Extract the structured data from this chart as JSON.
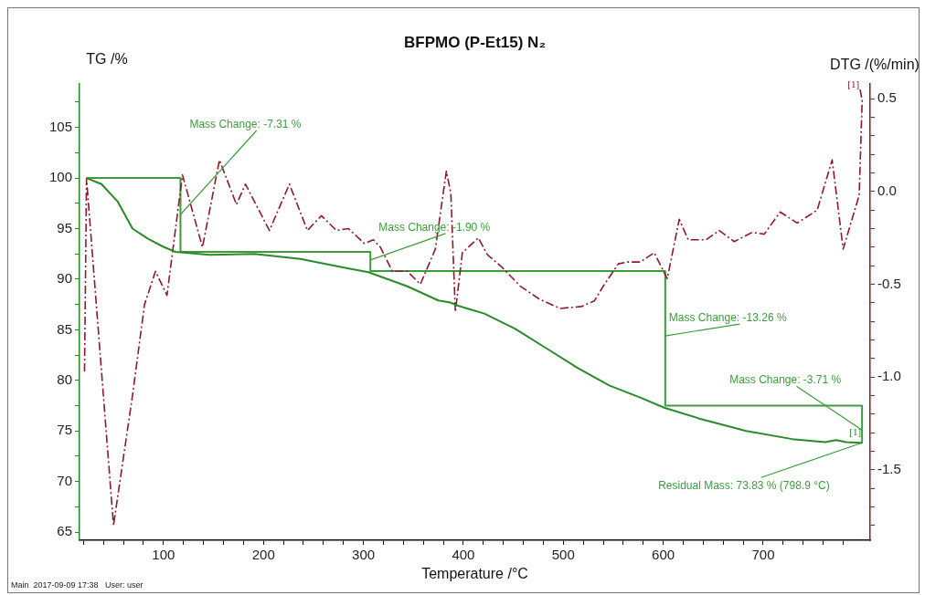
{
  "chart_data": {
    "type": "line",
    "title": "BFPMO (P-Et15) N₂",
    "xlabel": "Temperature /°C",
    "ylabel": "TG /%",
    "y2label": "DTG /(%/min)",
    "xlim": [
      16,
      807
    ],
    "xticks": [
      {
        "value": 20,
        "label": null
      },
      {
        "value": 40,
        "label": null
      },
      {
        "value": 60,
        "label": null
      },
      {
        "value": 80,
        "label": null
      },
      100,
      {
        "value": 120,
        "label": null
      },
      {
        "value": 140,
        "label": null
      },
      {
        "value": 160,
        "label": null
      },
      {
        "value": 180,
        "label": null
      },
      200,
      {
        "value": 220,
        "label": null
      },
      {
        "value": 240,
        "label": null
      },
      {
        "value": 260,
        "label": null
      },
      {
        "value": 280,
        "label": null
      },
      300,
      {
        "value": 320,
        "label": null
      },
      {
        "value": 340,
        "label": null
      },
      {
        "value": 360,
        "label": null
      },
      {
        "value": 380,
        "label": null
      },
      400,
      {
        "value": 420,
        "label": null
      },
      {
        "value": 440,
        "label": null
      },
      {
        "value": 460,
        "label": null
      },
      {
        "value": 480,
        "label": null
      },
      500,
      {
        "value": 520,
        "label": null
      },
      {
        "value": 540,
        "label": null
      },
      {
        "value": 560,
        "label": null
      },
      {
        "value": 580,
        "label": null
      },
      600,
      {
        "value": 620,
        "label": null
      },
      {
        "value": 640,
        "label": null
      },
      {
        "value": 660,
        "label": null
      },
      {
        "value": 680,
        "label": null
      },
      700,
      {
        "value": 720,
        "label": null
      },
      {
        "value": 740,
        "label": null
      },
      {
        "value": 760,
        "label": null
      },
      {
        "value": 780,
        "label": null
      }
    ],
    "ylim": [
      64.2,
      109.3
    ],
    "yticks": [
      65,
      {
        "value": 67.5,
        "label": null
      },
      70,
      {
        "value": 72.5,
        "label": null
      },
      75,
      {
        "value": 77.5,
        "label": null
      },
      80,
      {
        "value": 82.5,
        "label": null
      },
      85,
      {
        "value": 87.5,
        "label": null
      },
      90,
      {
        "value": 92.5,
        "label": null
      },
      95,
      {
        "value": 97.5,
        "label": null
      },
      100,
      {
        "value": 102.5,
        "label": null
      },
      105,
      {
        "value": 107.5,
        "label": null
      }
    ],
    "y2lim": [
      -1.88,
      0.58
    ],
    "y2ticks": [
      {
        "value": -1.8,
        "label": null
      },
      {
        "value": -1.7,
        "label": null
      },
      {
        "value": -1.6,
        "label": null
      },
      -1.5,
      {
        "value": -1.4,
        "label": null
      },
      {
        "value": -1.3,
        "label": null
      },
      {
        "value": -1.2,
        "label": null
      },
      {
        "value": -1.1,
        "label": null
      },
      {
        "value": -1,
        "label": "-1.0"
      },
      {
        "value": -0.9,
        "label": null
      },
      {
        "value": -0.8,
        "label": null
      },
      {
        "value": -0.7,
        "label": null
      },
      {
        "value": -0.6,
        "label": null
      },
      -0.5,
      {
        "value": -0.4,
        "label": null
      },
      {
        "value": -0.3,
        "label": null
      },
      {
        "value": -0.2,
        "label": null
      },
      {
        "value": -0.1,
        "label": null
      },
      {
        "value": 0,
        "label": "0.0"
      },
      {
        "value": 0.1,
        "label": null
      },
      {
        "value": 0.2,
        "label": null
      },
      {
        "value": 0.3,
        "label": null
      },
      {
        "value": 0.4,
        "label": null
      },
      0.5
    ],
    "grid": false,
    "legend": false,
    "marker": "none",
    "series": [
      {
        "type": "line",
        "color": "#2a8a2a",
        "line_style": "solid",
        "x": [
          23,
          38,
          54,
          69,
          84.5,
          100,
          112,
          146,
          191,
          237,
          283,
          305,
          344,
          375,
          387,
          394,
          421,
          452,
          481,
          515,
          546,
          577,
          601,
          637,
          683,
          729,
          762,
          773,
          783,
          798.9
        ],
        "values": [
          100,
          99.4,
          97.7,
          95,
          94,
          93.2,
          92.7,
          92.4,
          92.5,
          92,
          91.1,
          90.7,
          89.3,
          87.9,
          87.7,
          87.4,
          86.6,
          85.1,
          83.3,
          81.2,
          79.5,
          78.3,
          77.3,
          76.2,
          75,
          74.2,
          73.9,
          74.1,
          73.9,
          73.83
        ]
      },
      {
        "type": "line",
        "color": "#8b1a2a",
        "line_style": "dashed",
        "axis": "y2",
        "x": [
          21,
          23,
          50,
          69,
          81,
          92,
          103.5,
          119,
          139,
          156,
          173,
          182,
          206,
          226,
          244,
          258,
          273,
          285,
          301,
          310,
          317,
          329,
          344,
          357,
          372,
          383,
          387.5,
          392,
          399,
          415,
          424,
          439,
          457,
          476,
          497,
          518,
          531,
          540,
          555,
          564,
          577,
          591,
          604,
          616,
          625,
          643,
          656,
          671,
          689,
          701,
          717,
          734,
          754,
          769,
          780,
          796,
          799,
          797
        ],
        "values": [
          -0.97,
          0.07,
          -1.8,
          -1.1,
          -0.61,
          -0.43,
          -0.56,
          0.09,
          -0.3,
          0.17,
          -0.07,
          0.04,
          -0.21,
          0.04,
          -0.21,
          -0.13,
          -0.21,
          -0.2,
          -0.28,
          -0.26,
          -0.3,
          -0.43,
          -0.43,
          -0.5,
          -0.31,
          0.11,
          -0.01,
          -0.65,
          -0.33,
          -0.25,
          -0.34,
          -0.41,
          -0.51,
          -0.58,
          -0.63,
          -0.62,
          -0.59,
          -0.51,
          -0.39,
          -0.38,
          -0.38,
          -0.33,
          -0.47,
          -0.15,
          -0.26,
          -0.26,
          -0.21,
          -0.27,
          -0.22,
          -0.23,
          -0.11,
          -0.17,
          -0.1,
          0.17,
          -0.31,
          -0.02,
          0.49,
          0.55
        ]
      },
      {
        "type": "line",
        "color": "#3c9c3c",
        "line_style": "solid",
        "x": [
          23,
          117,
          117,
          307,
          307,
          602,
          602,
          798.9,
          798.9
        ],
        "values": [
          100,
          100,
          92.7,
          92.7,
          90.8,
          90.8,
          77.5,
          77.5,
          73.83
        ]
      }
    ],
    "annotations": [
      {
        "text": "Mass Change: -7.31 %",
        "x": 117,
        "y": 96.4
      },
      {
        "text": "Mass Change: -1.90 %",
        "x": 307,
        "y": 91.9
      },
      {
        "text": "Mass Change: -13.26 %",
        "x": 602,
        "y": 84.4
      },
      {
        "text": "Mass Change: -3.71 %",
        "x": 798.9,
        "y": 75.1
      },
      {
        "text": "Residual Mass: 73.83 % (798.9 °C)",
        "x": 798.9,
        "y": 73.83
      },
      "[1]",
      "[1]",
      "Main  2017-09-09 17:38   User: user"
    ]
  }
}
